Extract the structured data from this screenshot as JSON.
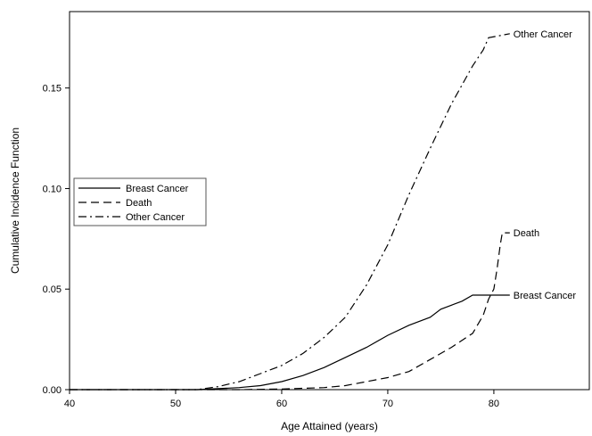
{
  "chart_data": {
    "type": "line",
    "title": "",
    "xlabel": "Age Attained (years)",
    "ylabel": "Cumulative Incidence Function",
    "xlim": [
      40,
      89
    ],
    "ylim": [
      0,
      0.188
    ],
    "xticks": [
      40,
      50,
      60,
      70,
      80
    ],
    "yticks": [
      0.0,
      0.05,
      0.1,
      0.15
    ],
    "ytick_labels": [
      "0.00",
      "0.05",
      "0.10",
      "0.15"
    ],
    "grid": false,
    "legend_position": "left-middle",
    "series": [
      {
        "name": "Breast Cancer",
        "dash": "solid",
        "points": [
          [
            40,
            0
          ],
          [
            52,
            0
          ],
          [
            54,
            0.0005
          ],
          [
            56,
            0.001
          ],
          [
            58,
            0.002
          ],
          [
            60,
            0.004
          ],
          [
            62,
            0.007
          ],
          [
            64,
            0.011
          ],
          [
            66,
            0.016
          ],
          [
            68,
            0.021
          ],
          [
            70,
            0.027
          ],
          [
            72,
            0.032
          ],
          [
            74,
            0.036
          ],
          [
            75,
            0.04
          ],
          [
            76,
            0.042
          ],
          [
            77,
            0.044
          ],
          [
            78,
            0.047
          ],
          [
            81.5,
            0.047
          ]
        ],
        "end_label": "Breast Cancer"
      },
      {
        "name": "Death",
        "dash": "dashed",
        "points": [
          [
            40,
            0
          ],
          [
            56,
            0
          ],
          [
            60,
            0.0003
          ],
          [
            64,
            0.001
          ],
          [
            66,
            0.002
          ],
          [
            68,
            0.004
          ],
          [
            70,
            0.006
          ],
          [
            72,
            0.009
          ],
          [
            74,
            0.015
          ],
          [
            76,
            0.021
          ],
          [
            78,
            0.028
          ],
          [
            79,
            0.037
          ],
          [
            79.5,
            0.045
          ],
          [
            80,
            0.05
          ],
          [
            80.3,
            0.06
          ],
          [
            80.6,
            0.072
          ],
          [
            80.8,
            0.078
          ],
          [
            81.5,
            0.078
          ]
        ],
        "end_label": "Death"
      },
      {
        "name": "Other Cancer",
        "dash": "dash-dot",
        "points": [
          [
            40,
            0
          ],
          [
            52,
            0
          ],
          [
            54,
            0.0015
          ],
          [
            56,
            0.004
          ],
          [
            58,
            0.008
          ],
          [
            60,
            0.012
          ],
          [
            62,
            0.018
          ],
          [
            64,
            0.026
          ],
          [
            66,
            0.036
          ],
          [
            68,
            0.052
          ],
          [
            70,
            0.072
          ],
          [
            72,
            0.097
          ],
          [
            74,
            0.12
          ],
          [
            76,
            0.142
          ],
          [
            78,
            0.161
          ],
          [
            79,
            0.169
          ],
          [
            79.5,
            0.175
          ],
          [
            80.5,
            0.176
          ],
          [
            81.5,
            0.177
          ]
        ],
        "end_label": "Other Cancer"
      }
    ]
  }
}
